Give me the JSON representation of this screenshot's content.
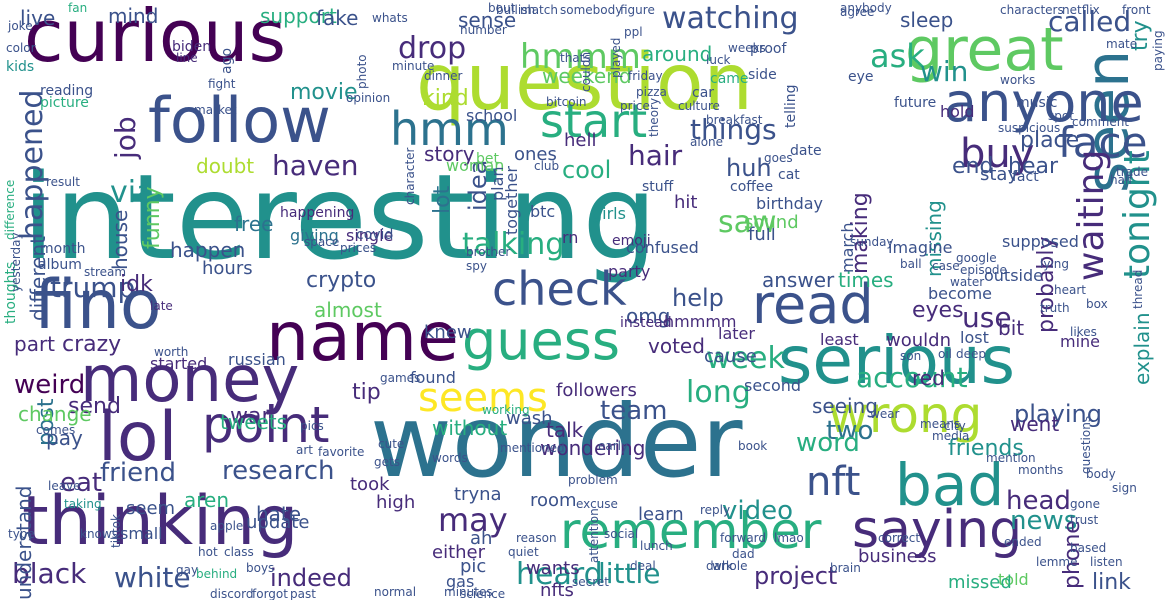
{
  "palette": {
    "background": "#ffffff",
    "colors": [
      "#440154",
      "#472c7a",
      "#3b528b",
      "#2c728e",
      "#21918c",
      "#28ae80",
      "#5ec962",
      "#addc30",
      "#fde725"
    ]
  },
  "words": [
    {
      "text": "interesting",
      "color": 4
    },
    {
      "text": "wonder",
      "color": 3
    },
    {
      "text": "question",
      "color": 7
    },
    {
      "text": "curious",
      "color": 0
    },
    {
      "text": "serious",
      "color": 4
    },
    {
      "text": "thinking",
      "color": 1
    },
    {
      "text": "seen",
      "color": 3
    },
    {
      "text": "great",
      "color": 6
    },
    {
      "text": "name",
      "color": 0
    },
    {
      "text": "money",
      "color": 1
    },
    {
      "text": "guess",
      "color": 5
    },
    {
      "text": "remember",
      "color": 5
    },
    {
      "text": "read",
      "color": 2
    },
    {
      "text": "wrong",
      "color": 7
    },
    {
      "text": "anyone",
      "color": 2
    },
    {
      "text": "follow",
      "color": 2
    },
    {
      "text": "lol",
      "color": 1
    },
    {
      "text": "point",
      "color": 1
    },
    {
      "text": "bad",
      "color": 4
    },
    {
      "text": "fino",
      "color": 2
    },
    {
      "text": "saying",
      "color": 1
    },
    {
      "text": "check",
      "color": 2
    },
    {
      "text": "hmmm",
      "color": 6
    },
    {
      "text": "hmm",
      "color": 3
    },
    {
      "text": "start",
      "color": 5
    },
    {
      "text": "buy",
      "color": 1
    },
    {
      "text": "face",
      "color": 2
    },
    {
      "text": "waiting",
      "color": 1
    },
    {
      "text": "tonight",
      "color": 4
    },
    {
      "text": "seems",
      "color": 8
    },
    {
      "text": "long",
      "color": 5
    },
    {
      "text": "watching",
      "color": 2
    },
    {
      "text": "ask",
      "color": 5
    },
    {
      "text": "win",
      "color": 4
    },
    {
      "text": "drop",
      "color": 1
    },
    {
      "text": "talking",
      "color": 5
    },
    {
      "text": "hair",
      "color": 1
    },
    {
      "text": "happened",
      "color": 2
    },
    {
      "text": "trump",
      "color": 2
    },
    {
      "text": "black",
      "color": 1
    },
    {
      "text": "white",
      "color": 2
    },
    {
      "text": "indeed",
      "color": 1
    },
    {
      "text": "heard",
      "color": 4
    },
    {
      "text": "little",
      "color": 4
    },
    {
      "text": "project",
      "color": 1
    },
    {
      "text": "may",
      "color": 1
    },
    {
      "text": "research",
      "color": 2
    },
    {
      "text": "friend",
      "color": 2
    },
    {
      "text": "eat",
      "color": 1
    },
    {
      "text": "weird",
      "color": 0
    },
    {
      "text": "team",
      "color": 2
    },
    {
      "text": "two",
      "color": 3
    },
    {
      "text": "word",
      "color": 5
    },
    {
      "text": "video",
      "color": 4
    },
    {
      "text": "nft",
      "color": 2
    },
    {
      "text": "news",
      "color": 4
    },
    {
      "text": "link",
      "color": 2
    },
    {
      "text": "phone",
      "color": 1
    },
    {
      "text": "head",
      "color": 1
    },
    {
      "text": "post",
      "color": 3
    },
    {
      "text": "haven",
      "color": 1
    },
    {
      "text": "via",
      "color": 4
    },
    {
      "text": "job",
      "color": 1
    },
    {
      "text": "kind",
      "color": 7
    },
    {
      "text": "things",
      "color": 2
    },
    {
      "text": "saw",
      "color": 6
    },
    {
      "text": "cool",
      "color": 5
    },
    {
      "text": "huh",
      "color": 2
    },
    {
      "text": "idea",
      "color": 2
    },
    {
      "text": "lot",
      "color": 3
    },
    {
      "text": "making",
      "color": 1
    },
    {
      "text": "help",
      "color": 2
    },
    {
      "text": "week",
      "color": 5
    },
    {
      "text": "use",
      "color": 1
    },
    {
      "text": "account",
      "color": 5
    },
    {
      "text": "playing",
      "color": 2
    },
    {
      "text": "explain",
      "color": 4
    },
    {
      "text": "probably",
      "color": 1
    },
    {
      "text": "hear",
      "color": 2
    },
    {
      "text": "place",
      "color": 2
    },
    {
      "text": "end",
      "color": 2
    },
    {
      "text": "movie",
      "color": 4
    },
    {
      "text": "called",
      "color": 2
    },
    {
      "text": "try",
      "color": 4
    },
    {
      "text": "mind",
      "color": 2
    },
    {
      "text": "support",
      "color": 5
    },
    {
      "text": "fake",
      "color": 2
    },
    {
      "text": "live",
      "color": 2
    },
    {
      "text": "sense",
      "color": 2
    },
    {
      "text": "sleep",
      "color": 2
    },
    {
      "text": "story",
      "color": 1
    },
    {
      "text": "around",
      "color": 5
    },
    {
      "text": "weekend",
      "color": 6
    },
    {
      "text": "tip",
      "color": 1
    },
    {
      "text": "war",
      "color": 1
    },
    {
      "text": "talk",
      "color": 1
    },
    {
      "text": "without",
      "color": 5
    },
    {
      "text": "wondering",
      "color": 1
    },
    {
      "text": "cause",
      "color": 2
    },
    {
      "text": "seeing",
      "color": 2
    },
    {
      "text": "red",
      "color": 1
    },
    {
      "text": "friends",
      "color": 4
    },
    {
      "text": "aren",
      "color": 5
    },
    {
      "text": "tweets",
      "color": 5
    },
    {
      "text": "hate",
      "color": 2
    },
    {
      "text": "understand",
      "color": 2
    },
    {
      "text": "different",
      "color": 2
    },
    {
      "text": "part",
      "color": 1
    },
    {
      "text": "crazy",
      "color": 1
    },
    {
      "text": "send",
      "color": 1
    },
    {
      "text": "change",
      "color": 6
    },
    {
      "text": "pay",
      "color": 2
    },
    {
      "text": "free",
      "color": 3
    },
    {
      "text": "happen",
      "color": 2
    },
    {
      "text": "idk",
      "color": 1
    },
    {
      "text": "house",
      "color": 2
    },
    {
      "text": "funny",
      "color": 6
    },
    {
      "text": "doubt",
      "color": 7
    },
    {
      "text": "crypto",
      "color": 2
    },
    {
      "text": "almost",
      "color": 6
    },
    {
      "text": "eyes",
      "color": 1
    },
    {
      "text": "times",
      "color": 5
    },
    {
      "text": "answer",
      "color": 2
    },
    {
      "text": "missing",
      "color": 4
    },
    {
      "text": "hours",
      "color": 2
    },
    {
      "text": "hell",
      "color": 1
    },
    {
      "text": "hit",
      "color": 1
    },
    {
      "text": "knew",
      "color": 2
    },
    {
      "text": "bit",
      "color": 1
    },
    {
      "text": "stay",
      "color": 2
    },
    {
      "text": "omg",
      "color": 2
    },
    {
      "text": "school",
      "color": 2
    },
    {
      "text": "voted",
      "color": 1
    },
    {
      "text": "followers",
      "color": 1
    },
    {
      "text": "wash",
      "color": 2
    },
    {
      "text": "ones",
      "color": 2
    },
    {
      "text": "woman",
      "color": 6
    },
    {
      "text": "full",
      "color": 2
    },
    {
      "text": "sound",
      "color": 6
    },
    {
      "text": "wants",
      "color": 1
    },
    {
      "text": "learn",
      "color": 2
    },
    {
      "text": "tryna",
      "color": 2
    },
    {
      "text": "nfts",
      "color": 1
    },
    {
      "text": "gas",
      "color": 2
    },
    {
      "text": "pic",
      "color": 2
    },
    {
      "text": "ah",
      "color": 2
    },
    {
      "text": "either",
      "color": 1
    },
    {
      "text": "room",
      "color": 2
    },
    {
      "text": "update",
      "color": 2
    },
    {
      "text": "seem",
      "color": 2
    },
    {
      "text": "high",
      "color": 1
    },
    {
      "text": "took",
      "color": 1
    },
    {
      "text": "small",
      "color": 2
    },
    {
      "text": "went",
      "color": 1
    },
    {
      "text": "told",
      "color": 6
    },
    {
      "text": "missed",
      "color": 5
    },
    {
      "text": "business",
      "color": 1
    },
    {
      "text": "started",
      "color": 1
    },
    {
      "text": "russian",
      "color": 2
    },
    {
      "text": "found",
      "color": 2
    },
    {
      "text": "second",
      "color": 2
    },
    {
      "text": "lost",
      "color": 2
    },
    {
      "text": "mine",
      "color": 1
    },
    {
      "text": "wouldn",
      "color": 1
    },
    {
      "text": "least",
      "color": 1
    },
    {
      "text": "later",
      "color": 1
    },
    {
      "text": "hmmmm",
      "color": 1
    },
    {
      "text": "instead",
      "color": 1
    },
    {
      "text": "party",
      "color": 1
    },
    {
      "text": "outside",
      "color": 2
    },
    {
      "text": "become",
      "color": 2
    },
    {
      "text": "supposed",
      "color": 2
    },
    {
      "text": "single",
      "color": 1
    },
    {
      "text": "giving",
      "color": 3
    },
    {
      "text": "happening",
      "color": 1
    },
    {
      "text": "birthday",
      "color": 2
    },
    {
      "text": "together",
      "color": 2
    },
    {
      "text": "plan",
      "color": 2
    },
    {
      "text": "btc",
      "color": 2
    },
    {
      "text": "girls",
      "color": 4
    },
    {
      "text": "rn",
      "color": 1
    },
    {
      "text": "emoji",
      "color": 1
    },
    {
      "text": "bet",
      "color": 6
    },
    {
      "text": "confused",
      "color": 2
    },
    {
      "text": "imagine",
      "color": 2
    },
    {
      "text": "march",
      "color": 2
    },
    {
      "text": "fact",
      "color": 2
    },
    {
      "text": "hold",
      "color": 1
    },
    {
      "text": "future",
      "color": 2
    },
    {
      "text": "music",
      "color": 2
    },
    {
      "text": "eye",
      "color": 2
    },
    {
      "text": "car",
      "color": 2
    },
    {
      "text": "side",
      "color": 2
    },
    {
      "text": "came",
      "color": 5
    },
    {
      "text": "proof",
      "color": 2
    },
    {
      "text": "telling",
      "color": 2
    },
    {
      "text": "date",
      "color": 2
    },
    {
      "text": "cat",
      "color": 2
    },
    {
      "text": "coffee",
      "color": 2
    },
    {
      "text": "stuff",
      "color": 2
    },
    {
      "text": "covid",
      "color": 2
    },
    {
      "text": "month",
      "color": 2
    },
    {
      "text": "album",
      "color": 2
    },
    {
      "text": "thoughts",
      "color": 5
    },
    {
      "text": "ago",
      "color": 2
    },
    {
      "text": "line",
      "color": 1
    },
    {
      "text": "biden",
      "color": 1
    },
    {
      "text": "color",
      "color": 2
    },
    {
      "text": "joke",
      "color": 2
    },
    {
      "text": "fan",
      "color": 5
    },
    {
      "text": "kids",
      "color": 4
    },
    {
      "text": "picture",
      "color": 5
    },
    {
      "text": "reading",
      "color": 2
    },
    {
      "text": "whats",
      "color": 2
    },
    {
      "text": "agree",
      "color": 2
    },
    {
      "text": "market",
      "color": 2
    },
    {
      "text": "fight",
      "color": 2
    },
    {
      "text": "minute",
      "color": 2
    },
    {
      "text": "dinner",
      "color": 2
    },
    {
      "text": "stream",
      "color": 2
    },
    {
      "text": "late",
      "color": 1
    },
    {
      "text": "worth",
      "color": 2
    },
    {
      "text": "result",
      "color": 2
    },
    {
      "text": "difference",
      "color": 5
    },
    {
      "text": "yesterday",
      "color": 2
    },
    {
      "text": "thread",
      "color": 2
    },
    {
      "text": "comes",
      "color": 2
    },
    {
      "text": "games",
      "color": 2
    },
    {
      "text": "cute",
      "color": 2
    },
    {
      "text": "gets",
      "color": 2
    },
    {
      "text": "favorite",
      "color": 2
    },
    {
      "text": "art",
      "color": 2
    },
    {
      "text": "means",
      "color": 2
    },
    {
      "text": "media",
      "color": 2
    },
    {
      "text": "lmao",
      "color": 2
    },
    {
      "text": "whole",
      "color": 2
    },
    {
      "text": "dad",
      "color": 2
    },
    {
      "text": "working",
      "color": 5
    },
    {
      "text": "early",
      "color": 2
    },
    {
      "text": "questions",
      "color": 2
    },
    {
      "text": "sign",
      "color": 2
    },
    {
      "text": "class",
      "color": 2
    },
    {
      "text": "boys",
      "color": 2
    },
    {
      "text": "hot",
      "color": 2
    },
    {
      "text": "behind",
      "color": 5
    },
    {
      "text": "words",
      "color": 2
    },
    {
      "text": "minutes",
      "color": 2
    },
    {
      "text": "science",
      "color": 2
    },
    {
      "text": "normal",
      "color": 2
    },
    {
      "text": "discord",
      "color": 2
    },
    {
      "text": "forgot",
      "color": 2
    },
    {
      "text": "past",
      "color": 2
    },
    {
      "text": "apple",
      "color": 2
    },
    {
      "text": "type",
      "color": 2
    },
    {
      "text": "knows",
      "color": 2
    },
    {
      "text": "taking",
      "color": 4
    },
    {
      "text": "leave",
      "color": 2
    },
    {
      "text": "tiktok",
      "color": 2
    },
    {
      "text": "gay",
      "color": 2
    },
    {
      "text": "pics",
      "color": 2
    },
    {
      "text": "space",
      "color": 2
    },
    {
      "text": "prices",
      "color": 2
    },
    {
      "text": "brother",
      "color": 2
    },
    {
      "text": "spy",
      "color": 2
    },
    {
      "text": "quiet",
      "color": 2
    },
    {
      "text": "lemme",
      "color": 2
    },
    {
      "text": "listen",
      "color": 2
    },
    {
      "text": "based",
      "color": 2
    },
    {
      "text": "trust",
      "color": 2
    },
    {
      "text": "gone",
      "color": 2
    },
    {
      "text": "deep",
      "color": 2
    },
    {
      "text": "truth",
      "color": 2
    },
    {
      "text": "likes",
      "color": 2
    },
    {
      "text": "half",
      "color": 2
    },
    {
      "text": "trade",
      "color": 2
    },
    {
      "text": "comment",
      "color": 2
    },
    {
      "text": "spot",
      "color": 2
    },
    {
      "text": "suspicious",
      "color": 2
    },
    {
      "text": "works",
      "color": 2
    },
    {
      "text": "paying",
      "color": 2
    },
    {
      "text": "mate",
      "color": 2
    },
    {
      "text": "front",
      "color": 2
    },
    {
      "text": "netflix",
      "color": 2
    },
    {
      "text": "characters",
      "color": 2
    },
    {
      "text": "anybody",
      "color": 2
    },
    {
      "text": "somebody",
      "color": 2
    },
    {
      "text": "bullish",
      "color": 2
    },
    {
      "text": "bout",
      "color": 2
    },
    {
      "text": "match",
      "color": 2
    },
    {
      "text": "figure",
      "color": 2
    },
    {
      "text": "photo",
      "color": 2
    },
    {
      "text": "opinion",
      "color": 2
    },
    {
      "text": "number",
      "color": 2
    },
    {
      "text": "thats",
      "color": 2
    },
    {
      "text": "ppl",
      "color": 2
    },
    {
      "text": "luck",
      "color": 2
    },
    {
      "text": "weeks",
      "color": 2
    },
    {
      "text": "couldn",
      "color": 2
    },
    {
      "text": "played",
      "color": 2
    },
    {
      "text": "friday",
      "color": 2
    },
    {
      "text": "theory",
      "color": 2
    },
    {
      "text": "bitcoin",
      "color": 2
    },
    {
      "text": "price",
      "color": 2
    },
    {
      "text": "culture",
      "color": 2
    },
    {
      "text": "breakfast",
      "color": 2
    },
    {
      "text": "alone",
      "color": 2
    },
    {
      "text": "club",
      "color": 2
    },
    {
      "text": "character",
      "color": 2
    },
    {
      "text": "goes",
      "color": 2
    },
    {
      "text": "episode",
      "color": 2
    },
    {
      "text": "google",
      "color": 2
    },
    {
      "text": "water",
      "color": 2
    },
    {
      "text": "case",
      "color": 2
    },
    {
      "text": "heart",
      "color": 2
    },
    {
      "text": "lying",
      "color": 2
    },
    {
      "text": "box",
      "color": 2
    },
    {
      "text": "oil",
      "color": 2
    },
    {
      "text": "son",
      "color": 2
    },
    {
      "text": "wear",
      "color": 2
    },
    {
      "text": "city",
      "color": 2
    },
    {
      "text": "book",
      "color": 2
    },
    {
      "text": "dark",
      "color": 2
    },
    {
      "text": "forward",
      "color": 2
    },
    {
      "text": "reply",
      "color": 2
    },
    {
      "text": "deal",
      "color": 2
    },
    {
      "text": "attention",
      "color": 2
    },
    {
      "text": "problem",
      "color": 2
    },
    {
      "text": "social",
      "color": 2
    },
    {
      "text": "lunch",
      "color": 2
    },
    {
      "text": "reason",
      "color": 2
    },
    {
      "text": "excuse",
      "color": 2
    },
    {
      "text": "secret",
      "color": 2
    },
    {
      "text": "mentioned",
      "color": 2
    },
    {
      "text": "correct",
      "color": 2
    },
    {
      "text": "brain",
      "color": 2
    },
    {
      "text": "sunday",
      "color": 2
    },
    {
      "text": "ball",
      "color": 2
    },
    {
      "text": "pizza",
      "color": 2
    },
    {
      "text": "mention",
      "color": 2
    },
    {
      "text": "body",
      "color": 2
    },
    {
      "text": "ended",
      "color": 2
    },
    {
      "text": "months",
      "color": 2
    }
  ]
}
